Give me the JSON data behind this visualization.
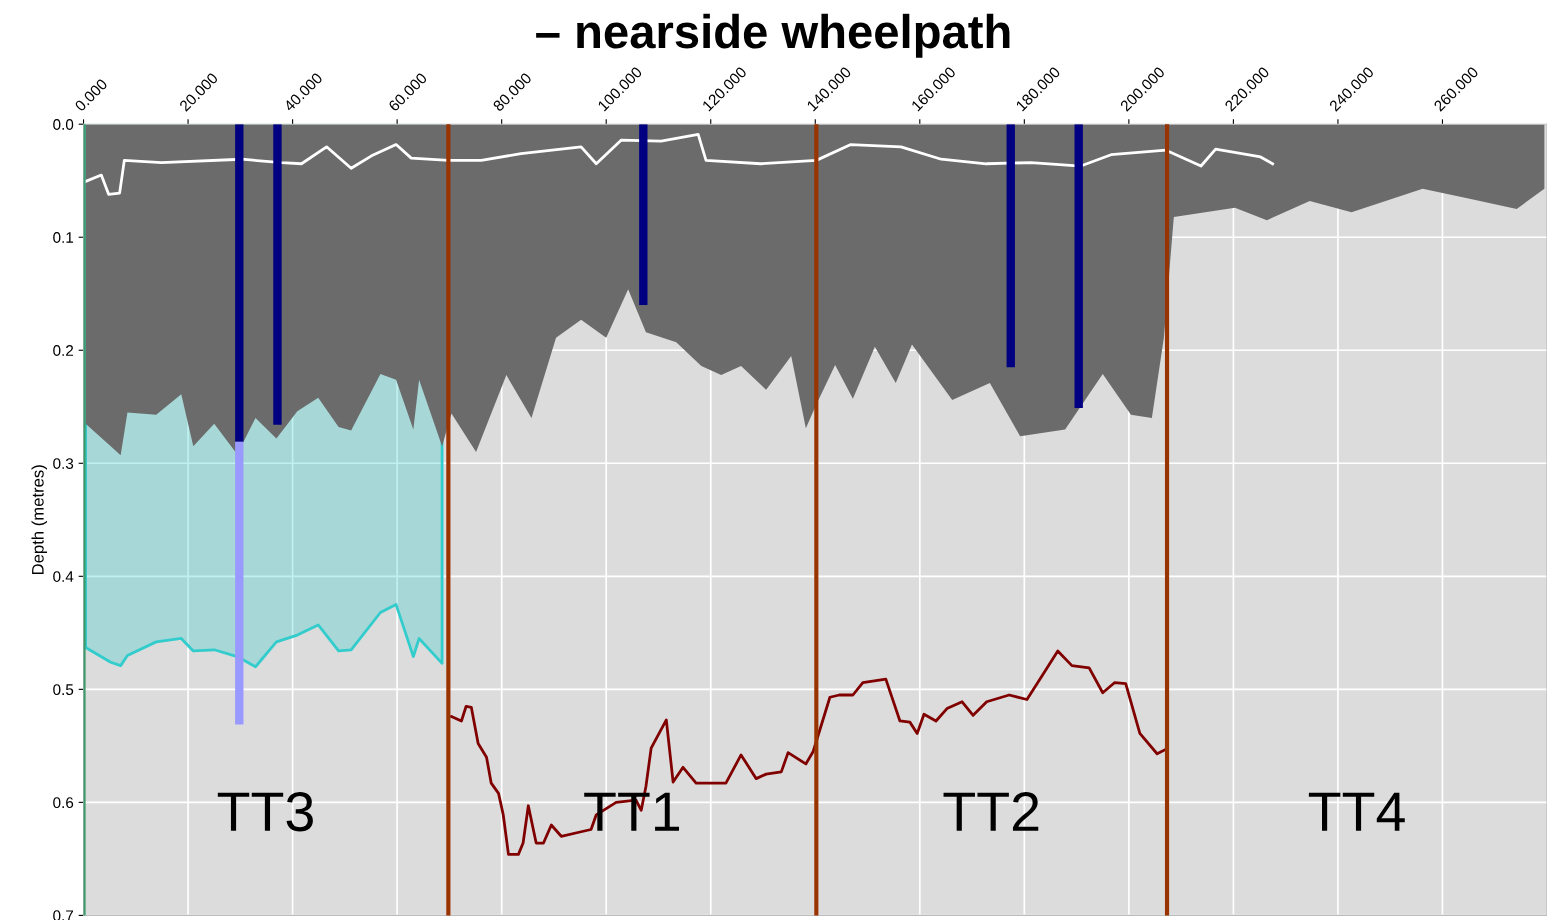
{
  "chart_data": {
    "type": "line",
    "title": "– nearside wheelpath",
    "ylabel": "Depth (metres)",
    "xlim": [
      0,
      280
    ],
    "ylim": [
      0.7,
      0
    ],
    "xticks": [
      {
        "value": 0,
        "label": "0.000"
      },
      {
        "value": 20,
        "label": "20.000"
      },
      {
        "value": 40,
        "label": "40.000"
      },
      {
        "value": 60,
        "label": "60.000"
      },
      {
        "value": 80,
        "label": "80.000"
      },
      {
        "value": 100,
        "label": "100.000"
      },
      {
        "value": 120,
        "label": "120.000"
      },
      {
        "value": 140,
        "label": "140.000"
      },
      {
        "value": 160,
        "label": "160.000"
      },
      {
        "value": 180,
        "label": "180.000"
      },
      {
        "value": 200,
        "label": "200.000"
      },
      {
        "value": 220,
        "label": "220.000"
      },
      {
        "value": 240,
        "label": "240.000"
      },
      {
        "value": 260,
        "label": "260.000"
      }
    ],
    "yticks": [
      {
        "value": 0,
        "label": "0.0"
      },
      {
        "value": 0.1,
        "label": "0.1"
      },
      {
        "value": 0.2,
        "label": "0.2"
      },
      {
        "value": 0.3,
        "label": "0.3"
      },
      {
        "value": 0.4,
        "label": "0.4"
      },
      {
        "value": 0.5,
        "label": "0.5"
      },
      {
        "value": 0.6,
        "label": "0.6"
      },
      {
        "value": 0.7,
        "label": "0.7"
      }
    ],
    "grid": true,
    "series": [
      {
        "type": "area",
        "color": "#33cccc",
        "x": [
          0.4,
          5.2,
          7.1,
          8.4,
          13.9,
          18.7,
          21.0,
          25.0,
          29.4,
          32.9,
          36.9,
          40.9,
          44.9,
          48.8,
          51.2,
          56.8,
          59.8,
          63.1,
          64.2,
          68.6
        ],
        "values": [
          0.463,
          0.476,
          0.479,
          0.47,
          0.458,
          0.455,
          0.466,
          0.465,
          0.471,
          0.48,
          0.458,
          0.452,
          0.443,
          0.466,
          0.465,
          0.432,
          0.425,
          0.471,
          0.455,
          0.477
        ]
      },
      {
        "type": "area",
        "color": "#6b6b6b",
        "x": [
          0.4,
          5.2,
          7.1,
          8.4,
          13.9,
          18.7,
          21.0,
          25.0,
          29.4,
          32.9,
          36.9,
          40.9,
          44.9,
          48.8,
          51.2,
          56.8,
          59.8,
          63.1,
          64.2,
          68.6,
          70.4,
          75.1,
          80.9,
          85.7,
          90.4,
          95.2,
          100.0,
          104.2,
          107.6,
          113.4,
          118.2,
          122.0,
          125.8,
          130.6,
          135.4,
          138.2,
          140.2,
          143.8,
          147.2,
          151.4,
          155.4,
          158.5,
          166.2,
          173.4,
          179.2,
          187.8,
          195.0,
          200.4,
          204.4,
          206.7,
          208.6,
          220.3,
          226.4,
          234.6,
          242.6,
          256.2,
          265.2,
          274.2,
          279.5
        ],
        "values": [
          0.265,
          0.285,
          0.293,
          0.255,
          0.257,
          0.239,
          0.285,
          0.265,
          0.292,
          0.26,
          0.278,
          0.254,
          0.242,
          0.268,
          0.271,
          0.221,
          0.226,
          0.27,
          0.226,
          0.285,
          0.256,
          0.29,
          0.222,
          0.26,
          0.189,
          0.173,
          0.189,
          0.146,
          0.184,
          0.193,
          0.214,
          0.222,
          0.214,
          0.235,
          0.205,
          0.269,
          0.248,
          0.213,
          0.243,
          0.197,
          0.229,
          0.195,
          0.244,
          0.229,
          0.276,
          0.27,
          0.221,
          0.257,
          0.26,
          0.189,
          0.082,
          0.074,
          0.085,
          0.068,
          0.078,
          0.057,
          0.066,
          0.075,
          0.057
        ]
      },
      {
        "color": "#ffffff",
        "x": [
          0.2,
          3.4,
          4.8,
          6.9,
          7.8,
          14.9,
          30.2,
          37.9,
          41.7,
          46.5,
          51.2,
          55.1,
          59.8,
          62.7,
          69.8,
          76.1,
          83.7,
          95.2,
          98.1,
          102.9,
          110.5,
          117.6,
          119.1,
          129.6,
          140.2,
          146.8,
          156.4,
          164.1,
          172.7,
          181.3,
          190.8,
          196.6,
          207.1,
          213.8,
          216.6,
          225.2,
          227.5
        ],
        "values": [
          0.051,
          0.045,
          0.062,
          0.061,
          0.032,
          0.034,
          0.031,
          0.034,
          0.035,
          0.02,
          0.039,
          0.028,
          0.018,
          0.03,
          0.032,
          0.032,
          0.026,
          0.02,
          0.035,
          0.014,
          0.015,
          0.009,
          0.032,
          0.035,
          0.032,
          0.018,
          0.02,
          0.031,
          0.035,
          0.034,
          0.037,
          0.027,
          0.023,
          0.037,
          0.022,
          0.029,
          0.035
        ]
      },
      {
        "color": "#800000",
        "x": [
          70.4,
          72.3,
          73.2,
          74.2,
          75.5,
          77.1,
          78.0,
          79.4,
          80.3,
          81.3,
          83.2,
          84.1,
          85.1,
          86.6,
          88.0,
          89.5,
          91.4,
          95.2,
          97.1,
          98.1,
          101.9,
          105.7,
          106.7,
          107.6,
          108.6,
          111.5,
          112.8,
          114.7,
          117.2,
          122.9,
          125.8,
          128.7,
          130.6,
          133.5,
          134.8,
          138.2,
          139.6,
          142.8,
          144.6,
          147.2,
          149.1,
          153.5,
          156.2,
          158.1,
          159.5,
          160.8,
          163.1,
          165.2,
          168.1,
          170.2,
          172.8,
          177.1,
          180.5,
          183.4,
          186.4,
          189.1,
          192.4,
          195.0,
          197.3,
          199.4,
          202.1,
          205.4,
          207.1
        ],
        "values": [
          0.524,
          0.528,
          0.515,
          0.516,
          0.548,
          0.56,
          0.583,
          0.592,
          0.611,
          0.646,
          0.646,
          0.636,
          0.603,
          0.636,
          0.636,
          0.62,
          0.63,
          0.626,
          0.624,
          0.611,
          0.6,
          0.598,
          0.607,
          0.586,
          0.552,
          0.527,
          0.582,
          0.569,
          0.583,
          0.583,
          0.558,
          0.579,
          0.575,
          0.573,
          0.556,
          0.566,
          0.555,
          0.507,
          0.505,
          0.505,
          0.494,
          0.491,
          0.528,
          0.529,
          0.539,
          0.522,
          0.528,
          0.517,
          0.511,
          0.523,
          0.511,
          0.505,
          0.509,
          0.488,
          0.466,
          0.479,
          0.481,
          0.503,
          0.494,
          0.495,
          0.539,
          0.557,
          0.553
        ]
      },
      {
        "type": "bar",
        "color": "#000080",
        "x": [
          29.8,
          37.1,
          107.1,
          177.4,
          190.4
        ],
        "base": [
          0,
          0,
          0,
          0,
          0
        ],
        "values": [
          0.281,
          0.266,
          0.16,
          0.215,
          0.251
        ]
      },
      {
        "type": "bar",
        "color": "#9999ff",
        "x": [
          29.8
        ],
        "base": [
          0.281
        ],
        "values": [
          0.25
        ]
      }
    ],
    "ref_lines": [
      {
        "axis": "x",
        "value": 0,
        "color": "#3c9a6e"
      },
      {
        "axis": "x",
        "value": 69.8,
        "color": "#993300"
      },
      {
        "axis": "x",
        "value": 140.2,
        "color": "#993300"
      },
      {
        "axis": "x",
        "value": 207.3,
        "color": "#993300"
      }
    ],
    "annotations": [
      "TT3",
      "TT1",
      "TT2",
      "TT4"
    ]
  }
}
